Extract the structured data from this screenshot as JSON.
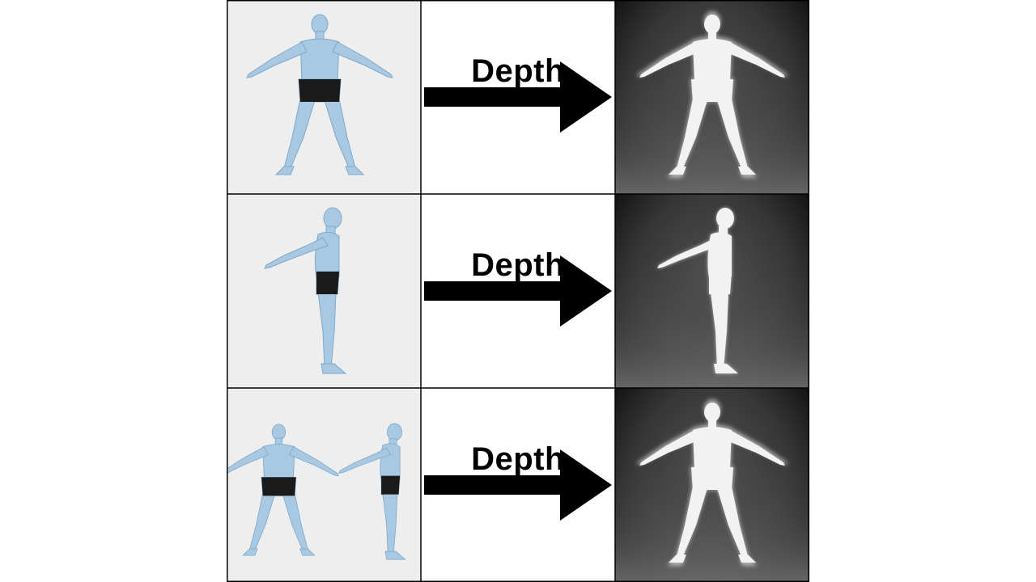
{
  "rows": [
    {
      "label": "Depth",
      "render": "front-view human mesh",
      "depth": "front depth map"
    },
    {
      "label": "Depth",
      "render": "side-view human mesh",
      "depth": "side depth map"
    },
    {
      "label": "Depth",
      "render": "front and side human meshes",
      "depth": "front depth map"
    }
  ],
  "colors": {
    "skin": "#a9c9e3",
    "skin_shade": "#7fa8c8",
    "shorts": "#1a1a1a",
    "render_bg": "#eeeeee",
    "arrow": "#000000"
  }
}
